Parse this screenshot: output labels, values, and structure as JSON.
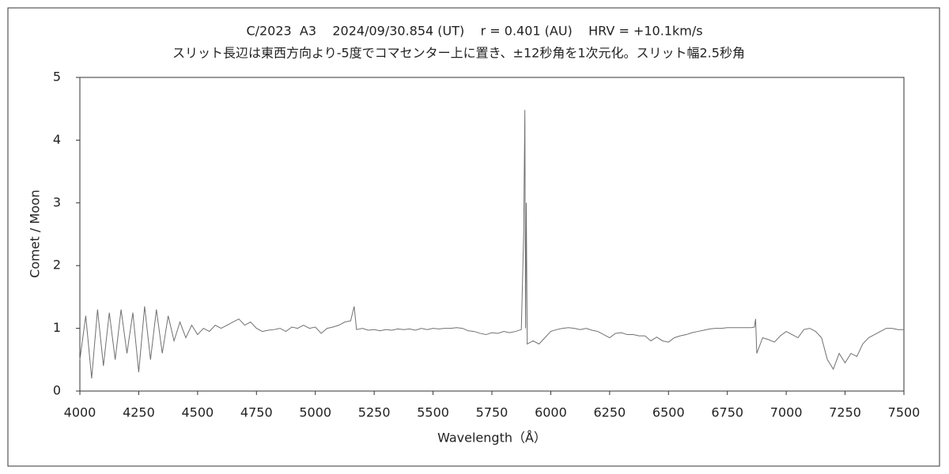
{
  "chart_data": {
    "type": "line",
    "title": "C/2023  A3    2024/09/30.854 (UT)    r = 0.401 (AU)    HRV = +10.1km/s",
    "subtitle": "スリット長辺は東西方向より-5度でコマセンター上に置き、±12秒角を1次元化。スリット幅2.5秒角",
    "x_label": "Wavelength（Å）",
    "y_label": "Comet / Moon",
    "xlim": [
      4000,
      7500
    ],
    "xticks": [
      4000,
      4250,
      4500,
      4750,
      5000,
      5250,
      5500,
      5750,
      6000,
      6250,
      6500,
      6750,
      7000,
      7250,
      7500
    ],
    "ylim": [
      0,
      5
    ],
    "yticks": [
      0,
      1,
      2,
      3,
      4,
      5
    ],
    "grid": false,
    "x": [
      4000,
      4025,
      4050,
      4075,
      4100,
      4125,
      4150,
      4175,
      4200,
      4225,
      4250,
      4275,
      4300,
      4325,
      4350,
      4375,
      4400,
      4425,
      4450,
      4475,
      4500,
      4525,
      4550,
      4575,
      4600,
      4625,
      4650,
      4675,
      4700,
      4725,
      4750,
      4775,
      4800,
      4825,
      4850,
      4875,
      4900,
      4925,
      4950,
      4975,
      5000,
      5025,
      5050,
      5075,
      5100,
      5125,
      5150,
      5165,
      5175,
      5200,
      5225,
      5250,
      5275,
      5300,
      5325,
      5350,
      5375,
      5400,
      5425,
      5450,
      5475,
      5500,
      5525,
      5550,
      5575,
      5600,
      5625,
      5650,
      5675,
      5700,
      5725,
      5750,
      5775,
      5800,
      5825,
      5850,
      5875,
      5885,
      5890,
      5893,
      5896,
      5900,
      5925,
      5950,
      5975,
      6000,
      6025,
      6050,
      6075,
      6100,
      6125,
      6150,
      6175,
      6200,
      6225,
      6250,
      6275,
      6300,
      6325,
      6350,
      6375,
      6400,
      6425,
      6450,
      6475,
      6500,
      6525,
      6550,
      6575,
      6600,
      6625,
      6650,
      6675,
      6700,
      6725,
      6750,
      6775,
      6800,
      6825,
      6850,
      6865,
      6870,
      6875,
      6900,
      6925,
      6950,
      6975,
      7000,
      7025,
      7050,
      7075,
      7100,
      7125,
      7150,
      7175,
      7200,
      7225,
      7250,
      7275,
      7300,
      7325,
      7350,
      7375,
      7400,
      7425,
      7450,
      7475,
      7500
    ],
    "series": [
      {
        "color": "#707070",
        "values": [
          0.5,
          1.2,
          0.2,
          1.3,
          0.4,
          1.25,
          0.5,
          1.3,
          0.6,
          1.25,
          0.3,
          1.35,
          0.5,
          1.3,
          0.6,
          1.2,
          0.8,
          1.1,
          0.85,
          1.05,
          0.9,
          1.0,
          0.95,
          1.05,
          1.0,
          1.05,
          1.1,
          1.15,
          1.05,
          1.1,
          1.0,
          0.95,
          0.97,
          0.98,
          1.0,
          0.95,
          1.02,
          1.0,
          1.05,
          1.0,
          1.02,
          0.92,
          1.0,
          1.02,
          1.05,
          1.1,
          1.12,
          1.35,
          0.98,
          1.0,
          0.97,
          0.98,
          0.96,
          0.98,
          0.97,
          0.99,
          0.98,
          0.99,
          0.97,
          1.0,
          0.98,
          1.0,
          0.99,
          1.0,
          1.0,
          1.01,
          1.0,
          0.96,
          0.95,
          0.92,
          0.9,
          0.93,
          0.92,
          0.95,
          0.93,
          0.95,
          0.98,
          2.5,
          4.48,
          1.0,
          3.0,
          0.75,
          0.8,
          0.75,
          0.85,
          0.95,
          0.98,
          1.0,
          1.01,
          1.0,
          0.98,
          1.0,
          0.97,
          0.95,
          0.9,
          0.85,
          0.92,
          0.93,
          0.9,
          0.9,
          0.88,
          0.88,
          0.8,
          0.86,
          0.8,
          0.78,
          0.85,
          0.88,
          0.9,
          0.93,
          0.95,
          0.97,
          0.99,
          1.0,
          1.0,
          1.01,
          1.01,
          1.01,
          1.01,
          1.01,
          1.02,
          1.15,
          0.6,
          0.85,
          0.82,
          0.78,
          0.88,
          0.95,
          0.9,
          0.85,
          0.98,
          1.0,
          0.95,
          0.85,
          0.5,
          0.35,
          0.6,
          0.45,
          0.6,
          0.55,
          0.75,
          0.85,
          0.9,
          0.95,
          1.0,
          1.0,
          0.98,
          0.98
        ]
      }
    ]
  }
}
